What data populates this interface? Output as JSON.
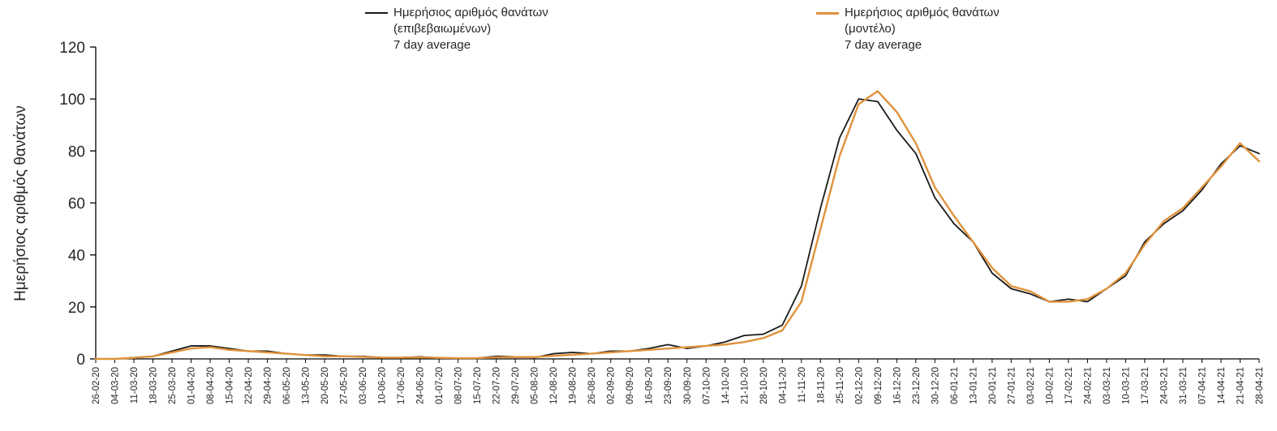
{
  "legend": [
    {
      "line1": "Ημερήσιος αριθμός θανάτων",
      "line2": "(επιβεβαιωμένων)",
      "line3": "7 day average",
      "color": "#1a1a1a"
    },
    {
      "line1": "Ημερήσιος αριθμός θανάτων",
      "line2": "(μοντέλο)",
      "line3": "7 day average",
      "color": "#e0923c"
    }
  ],
  "chart_data": {
    "type": "line",
    "title": "",
    "xlabel": "",
    "ylabel": "Ημερήσιος αριθμός θανάτων",
    "ylim": [
      0,
      120
    ],
    "yticks": [
      0,
      20,
      40,
      60,
      80,
      100,
      120
    ],
    "grid": false,
    "legend_position": "top",
    "categories": [
      "26-02-20",
      "04-03-20",
      "11-03-20",
      "18-03-20",
      "25-03-20",
      "01-04-20",
      "08-04-20",
      "15-04-20",
      "22-04-20",
      "29-04-20",
      "06-05-20",
      "13-05-20",
      "20-05-20",
      "27-05-20",
      "03-06-20",
      "10-06-20",
      "17-06-20",
      "24-06-20",
      "01-07-20",
      "08-07-20",
      "15-07-20",
      "22-07-20",
      "29-07-20",
      "05-08-20",
      "12-08-20",
      "19-08-20",
      "26-08-20",
      "02-09-20",
      "09-09-20",
      "16-09-20",
      "23-09-20",
      "30-09-20",
      "07-10-20",
      "14-10-20",
      "21-10-20",
      "28-10-20",
      "04-11-20",
      "11-11-20",
      "18-11-20",
      "25-11-20",
      "02-12-20",
      "09-12-20",
      "16-12-20",
      "23-12-20",
      "30-12-20",
      "06-01-21",
      "13-01-21",
      "20-01-21",
      "27-01-21",
      "03-02-21",
      "10-02-21",
      "17-02-21",
      "24-02-21",
      "03-03-21",
      "10-03-21",
      "17-03-21",
      "24-03-21",
      "31-03-21",
      "07-04-21",
      "14-04-21",
      "21-04-21",
      "28-04-21"
    ],
    "series": [
      {
        "name": "Ημερήσιος αριθμός θανάτων (επιβεβαιωμένων) 7 day average",
        "color": "#1a1a1a",
        "stroke_width": 1.8,
        "values": [
          0,
          0,
          0.5,
          1,
          3,
          5,
          5,
          4,
          3,
          3,
          2,
          1.5,
          1.5,
          1,
          1,
          0.5,
          0.5,
          0.8,
          0.4,
          0.3,
          0.3,
          1,
          0.8,
          0.5,
          2,
          2.5,
          2,
          3,
          3,
          4,
          5.5,
          4,
          5,
          6.5,
          9,
          9.5,
          13,
          28,
          58,
          85,
          100,
          99,
          88,
          79,
          62,
          52,
          45,
          33,
          27,
          25,
          22,
          23,
          22,
          27,
          32,
          45,
          52,
          57,
          65,
          75,
          82,
          79
        ]
      },
      {
        "name": "Ημερήσιος αριθμός θανάτων (μοντέλο) 7 day average",
        "color": "#e0923c",
        "stroke_width": 2.4,
        "values": [
          0,
          0,
          0.4,
          1,
          2.5,
          4,
          4.5,
          3.5,
          3,
          2.5,
          2,
          1.5,
          1,
          1,
          0.8,
          0.5,
          0.5,
          0.6,
          0.4,
          0.3,
          0.3,
          0.6,
          0.7,
          0.7,
          1.2,
          1.6,
          2,
          2.5,
          3,
          3.5,
          4,
          4.5,
          5,
          5.5,
          6.5,
          8,
          11,
          22,
          50,
          78,
          98,
          103,
          95,
          83,
          66,
          55,
          45,
          35,
          28,
          26,
          22,
          22,
          23,
          27,
          33,
          44,
          53,
          58,
          66,
          74,
          83,
          76
        ]
      }
    ]
  }
}
